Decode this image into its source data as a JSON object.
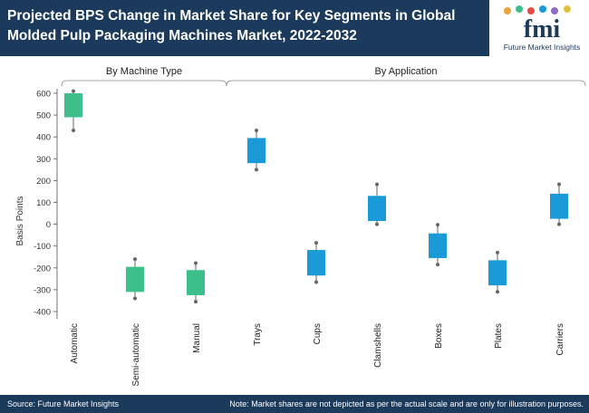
{
  "header": {
    "title": "Projected BPS Change in Market Share for Key Segments in Global Molded Pulp Packaging Machines Market, 2022-2032",
    "logo_text": "fmi",
    "logo_subtitle": "Future Market Insights"
  },
  "footer": {
    "source": "Source: Future Market Insights",
    "note": "Note: Market shares are not depicted as per the actual scale and are only for illustration purposes."
  },
  "colors": {
    "header_bg": "#1b3a5c",
    "machine_type": "#3dbf8c",
    "application": "#1a9ad6",
    "whisker": "#666666"
  },
  "chart_data": {
    "type": "box",
    "ylabel": "Basis Points",
    "ylim": [
      -400,
      600
    ],
    "yticks": [
      600,
      500,
      400,
      300,
      200,
      100,
      0,
      -100,
      -200,
      -300,
      -400
    ],
    "groups": [
      {
        "label": "By Machine Type",
        "categories": [
          "Automatic",
          "Semi-automatic",
          "Manual"
        ]
      },
      {
        "label": "By Application",
        "categories": [
          "Trays",
          "Cups",
          "Clamshells",
          "Boxes",
          "Plates",
          "Carriers"
        ]
      }
    ],
    "series": [
      {
        "category": "Automatic",
        "group": "By Machine Type",
        "min": 430,
        "q1": 490,
        "q3": 600,
        "max": 610
      },
      {
        "category": "Semi-automatic",
        "group": "By Machine Type",
        "min": -340,
        "q1": -310,
        "q3": -195,
        "max": -160
      },
      {
        "category": "Manual",
        "group": "By Machine Type",
        "min": -355,
        "q1": -325,
        "q3": -210,
        "max": -178
      },
      {
        "category": "Trays",
        "group": "By Application",
        "min": 250,
        "q1": 280,
        "q3": 395,
        "max": 430
      },
      {
        "category": "Cups",
        "group": "By Application",
        "min": -265,
        "q1": -235,
        "q3": -118,
        "max": -85
      },
      {
        "category": "Clamshells",
        "group": "By Application",
        "min": 0,
        "q1": 15,
        "q3": 130,
        "max": 183
      },
      {
        "category": "Boxes",
        "group": "By Application",
        "min": -185,
        "q1": -155,
        "q3": -42,
        "max": -2
      },
      {
        "category": "Plates",
        "group": "By Application",
        "min": -310,
        "q1": -280,
        "q3": -165,
        "max": -130
      },
      {
        "category": "Carriers",
        "group": "By Application",
        "min": 0,
        "q1": 25,
        "q3": 140,
        "max": 183
      }
    ]
  }
}
